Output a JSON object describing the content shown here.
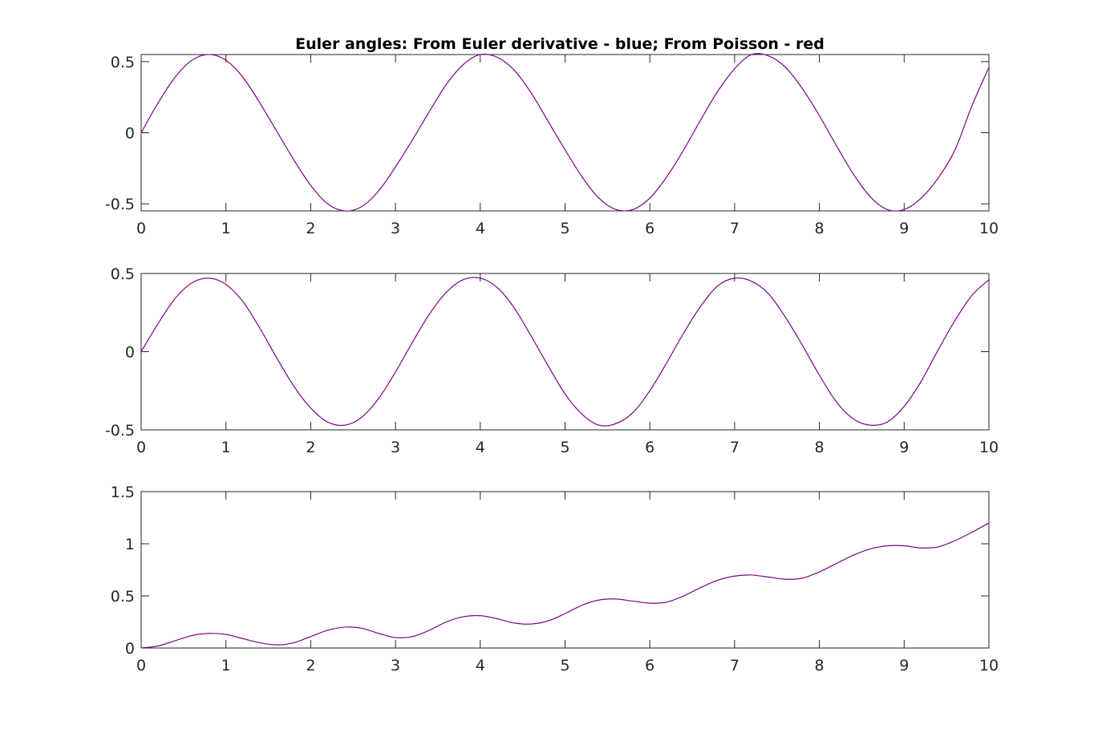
{
  "chart_data": [
    {
      "type": "line",
      "title": "Euler angles: From Euler derivative - blue; From Poisson - red",
      "xlabel": "",
      "ylabel": "",
      "xlim": [
        0,
        10
      ],
      "ylim": [
        -0.55,
        0.55
      ],
      "x_ticks": [
        0,
        1,
        2,
        3,
        4,
        5,
        6,
        7,
        8,
        9,
        10
      ],
      "x_tick_labels": [
        "0",
        "1",
        "2",
        "3",
        "4",
        "5",
        "6",
        "7",
        "8",
        "9",
        "10"
      ],
      "y_ticks": [
        -0.5,
        0,
        0.5
      ],
      "y_tick_labels": [
        "-0.5",
        "0",
        "0.5"
      ],
      "grid": false,
      "series": [
        {
          "color": "#0000ff",
          "x": [
            0,
            0.2,
            0.4,
            0.6,
            0.8,
            1.0,
            1.2,
            1.4,
            1.6,
            1.8,
            2.0,
            2.2,
            2.4,
            2.6,
            2.8,
            3.0,
            3.2,
            3.4,
            3.6,
            3.8,
            4.0,
            4.2,
            4.4,
            4.6,
            4.8,
            5.0,
            5.2,
            5.4,
            5.6,
            5.8,
            6.0,
            6.2,
            6.4,
            6.6,
            6.8,
            7.0,
            7.2,
            7.4,
            7.6,
            7.8,
            8.0,
            8.2,
            8.4,
            8.6,
            8.8,
            9.0,
            9.2,
            9.4,
            9.6,
            9.8,
            10.0
          ],
          "y": [
            0.0,
            0.21,
            0.39,
            0.51,
            0.55,
            0.51,
            0.39,
            0.21,
            0.01,
            -0.19,
            -0.37,
            -0.5,
            -0.55,
            -0.52,
            -0.41,
            -0.24,
            -0.05,
            0.15,
            0.34,
            0.48,
            0.55,
            0.53,
            0.44,
            0.28,
            0.08,
            -0.12,
            -0.31,
            -0.46,
            -0.54,
            -0.54,
            -0.46,
            -0.31,
            -0.12,
            0.09,
            0.29,
            0.45,
            0.55,
            0.54,
            0.46,
            0.31,
            0.12,
            -0.09,
            -0.29,
            -0.45,
            -0.54,
            -0.54,
            -0.46,
            -0.32,
            -0.12,
            0.19,
            0.46
          ]
        },
        {
          "color": "#ff0000",
          "x": [
            0,
            0.2,
            0.4,
            0.6,
            0.8,
            1.0,
            1.2,
            1.4,
            1.6,
            1.8,
            2.0,
            2.2,
            2.4,
            2.6,
            2.8,
            3.0,
            3.2,
            3.4,
            3.6,
            3.8,
            4.0,
            4.2,
            4.4,
            4.6,
            4.8,
            5.0,
            5.2,
            5.4,
            5.6,
            5.8,
            6.0,
            6.2,
            6.4,
            6.6,
            6.8,
            7.0,
            7.2,
            7.4,
            7.6,
            7.8,
            8.0,
            8.2,
            8.4,
            8.6,
            8.8,
            9.0,
            9.2,
            9.4,
            9.6,
            9.8,
            10.0
          ],
          "y": [
            0.0,
            0.21,
            0.39,
            0.51,
            0.55,
            0.51,
            0.39,
            0.21,
            0.01,
            -0.19,
            -0.37,
            -0.5,
            -0.55,
            -0.52,
            -0.41,
            -0.24,
            -0.05,
            0.15,
            0.34,
            0.48,
            0.55,
            0.53,
            0.44,
            0.28,
            0.08,
            -0.12,
            -0.31,
            -0.46,
            -0.54,
            -0.54,
            -0.46,
            -0.31,
            -0.12,
            0.09,
            0.29,
            0.45,
            0.55,
            0.54,
            0.46,
            0.31,
            0.12,
            -0.09,
            -0.29,
            -0.45,
            -0.54,
            -0.54,
            -0.46,
            -0.32,
            -0.12,
            0.19,
            0.46
          ]
        }
      ]
    },
    {
      "type": "line",
      "title": "",
      "xlabel": "",
      "ylabel": "",
      "xlim": [
        0,
        10
      ],
      "ylim": [
        -0.5,
        0.5
      ],
      "x_ticks": [
        0,
        1,
        2,
        3,
        4,
        5,
        6,
        7,
        8,
        9,
        10
      ],
      "x_tick_labels": [
        "0",
        "1",
        "2",
        "3",
        "4",
        "5",
        "6",
        "7",
        "8",
        "9",
        "10"
      ],
      "y_ticks": [
        -0.5,
        0,
        0.5
      ],
      "y_tick_labels": [
        "-0.5",
        "0",
        "0.5"
      ],
      "grid": false,
      "series": [
        {
          "color": "#0000ff",
          "x": [
            0,
            0.2,
            0.4,
            0.6,
            0.8,
            1.0,
            1.2,
            1.4,
            1.6,
            1.8,
            2.0,
            2.2,
            2.4,
            2.6,
            2.8,
            3.0,
            3.2,
            3.4,
            3.6,
            3.8,
            4.0,
            4.2,
            4.4,
            4.6,
            4.8,
            5.0,
            5.2,
            5.4,
            5.6,
            5.8,
            6.0,
            6.2,
            6.4,
            6.6,
            6.8,
            7.0,
            7.2,
            7.4,
            7.6,
            7.8,
            8.0,
            8.2,
            8.4,
            8.6,
            8.8,
            9.0,
            9.2,
            9.4,
            9.6,
            9.8,
            10.0
          ],
          "y": [
            0.0,
            0.18,
            0.34,
            0.44,
            0.47,
            0.43,
            0.32,
            0.15,
            -0.04,
            -0.22,
            -0.36,
            -0.45,
            -0.47,
            -0.42,
            -0.3,
            -0.13,
            0.06,
            0.24,
            0.38,
            0.46,
            0.47,
            0.41,
            0.28,
            0.1,
            -0.09,
            -0.27,
            -0.4,
            -0.47,
            -0.46,
            -0.39,
            -0.25,
            -0.07,
            0.12,
            0.29,
            0.42,
            0.47,
            0.45,
            0.37,
            0.22,
            0.04,
            -0.15,
            -0.32,
            -0.43,
            -0.47,
            -0.45,
            -0.35,
            -0.19,
            0.01,
            0.2,
            0.36,
            0.46
          ]
        },
        {
          "color": "#ff0000",
          "x": [
            0,
            0.2,
            0.4,
            0.6,
            0.8,
            1.0,
            1.2,
            1.4,
            1.6,
            1.8,
            2.0,
            2.2,
            2.4,
            2.6,
            2.8,
            3.0,
            3.2,
            3.4,
            3.6,
            3.8,
            4.0,
            4.2,
            4.4,
            4.6,
            4.8,
            5.0,
            5.2,
            5.4,
            5.6,
            5.8,
            6.0,
            6.2,
            6.4,
            6.6,
            6.8,
            7.0,
            7.2,
            7.4,
            7.6,
            7.8,
            8.0,
            8.2,
            8.4,
            8.6,
            8.8,
            9.0,
            9.2,
            9.4,
            9.6,
            9.8,
            10.0
          ],
          "y": [
            0.0,
            0.18,
            0.34,
            0.44,
            0.47,
            0.43,
            0.32,
            0.15,
            -0.04,
            -0.22,
            -0.36,
            -0.45,
            -0.47,
            -0.42,
            -0.3,
            -0.13,
            0.06,
            0.24,
            0.38,
            0.46,
            0.47,
            0.41,
            0.28,
            0.1,
            -0.09,
            -0.27,
            -0.4,
            -0.47,
            -0.46,
            -0.39,
            -0.25,
            -0.07,
            0.12,
            0.29,
            0.42,
            0.47,
            0.45,
            0.37,
            0.22,
            0.04,
            -0.15,
            -0.32,
            -0.43,
            -0.47,
            -0.45,
            -0.35,
            -0.19,
            0.01,
            0.2,
            0.36,
            0.46
          ]
        }
      ]
    },
    {
      "type": "line",
      "title": "",
      "xlabel": "",
      "ylabel": "",
      "xlim": [
        0,
        10
      ],
      "ylim": [
        0,
        1.5
      ],
      "x_ticks": [
        0,
        1,
        2,
        3,
        4,
        5,
        6,
        7,
        8,
        9,
        10
      ],
      "x_tick_labels": [
        "0",
        "1",
        "2",
        "3",
        "4",
        "5",
        "6",
        "7",
        "8",
        "9",
        "10"
      ],
      "y_ticks": [
        0,
        0.5,
        1,
        1.5
      ],
      "y_tick_labels": [
        "0",
        "0.5",
        "1",
        "1.5"
      ],
      "grid": false,
      "series": [
        {
          "color": "#0000ff",
          "x": [
            0,
            0.2,
            0.4,
            0.6,
            0.8,
            1.0,
            1.2,
            1.4,
            1.6,
            1.8,
            2.0,
            2.2,
            2.4,
            2.6,
            2.8,
            3.0,
            3.2,
            3.4,
            3.6,
            3.8,
            4.0,
            4.2,
            4.4,
            4.6,
            4.8,
            5.0,
            5.2,
            5.4,
            5.6,
            5.8,
            6.0,
            6.2,
            6.4,
            6.6,
            6.8,
            7.0,
            7.2,
            7.4,
            7.6,
            7.8,
            8.0,
            8.2,
            8.4,
            8.6,
            8.8,
            9.0,
            9.2,
            9.4,
            9.6,
            9.8,
            10.0
          ],
          "y": [
            0.0,
            0.02,
            0.07,
            0.12,
            0.14,
            0.13,
            0.09,
            0.05,
            0.03,
            0.05,
            0.11,
            0.17,
            0.2,
            0.19,
            0.14,
            0.1,
            0.11,
            0.17,
            0.25,
            0.3,
            0.31,
            0.28,
            0.24,
            0.23,
            0.26,
            0.33,
            0.41,
            0.46,
            0.47,
            0.45,
            0.43,
            0.44,
            0.5,
            0.58,
            0.65,
            0.69,
            0.7,
            0.68,
            0.66,
            0.67,
            0.73,
            0.81,
            0.89,
            0.95,
            0.98,
            0.98,
            0.96,
            0.97,
            1.03,
            1.11,
            1.2
          ]
        },
        {
          "color": "#ff0000",
          "x": [
            0,
            0.2,
            0.4,
            0.6,
            0.8,
            1.0,
            1.2,
            1.4,
            1.6,
            1.8,
            2.0,
            2.2,
            2.4,
            2.6,
            2.8,
            3.0,
            3.2,
            3.4,
            3.6,
            3.8,
            4.0,
            4.2,
            4.4,
            4.6,
            4.8,
            5.0,
            5.2,
            5.4,
            5.6,
            5.8,
            6.0,
            6.2,
            6.4,
            6.6,
            6.8,
            7.0,
            7.2,
            7.4,
            7.6,
            7.8,
            8.0,
            8.2,
            8.4,
            8.6,
            8.8,
            9.0,
            9.2,
            9.4,
            9.6,
            9.8,
            10.0
          ],
          "y": [
            0.0,
            0.02,
            0.07,
            0.12,
            0.14,
            0.13,
            0.09,
            0.05,
            0.03,
            0.05,
            0.11,
            0.17,
            0.2,
            0.19,
            0.14,
            0.1,
            0.11,
            0.17,
            0.25,
            0.3,
            0.31,
            0.28,
            0.24,
            0.23,
            0.26,
            0.33,
            0.41,
            0.46,
            0.47,
            0.45,
            0.43,
            0.44,
            0.5,
            0.58,
            0.65,
            0.69,
            0.7,
            0.68,
            0.66,
            0.67,
            0.73,
            0.81,
            0.89,
            0.95,
            0.98,
            0.98,
            0.96,
            0.97,
            1.03,
            1.11,
            1.2
          ]
        }
      ]
    }
  ]
}
